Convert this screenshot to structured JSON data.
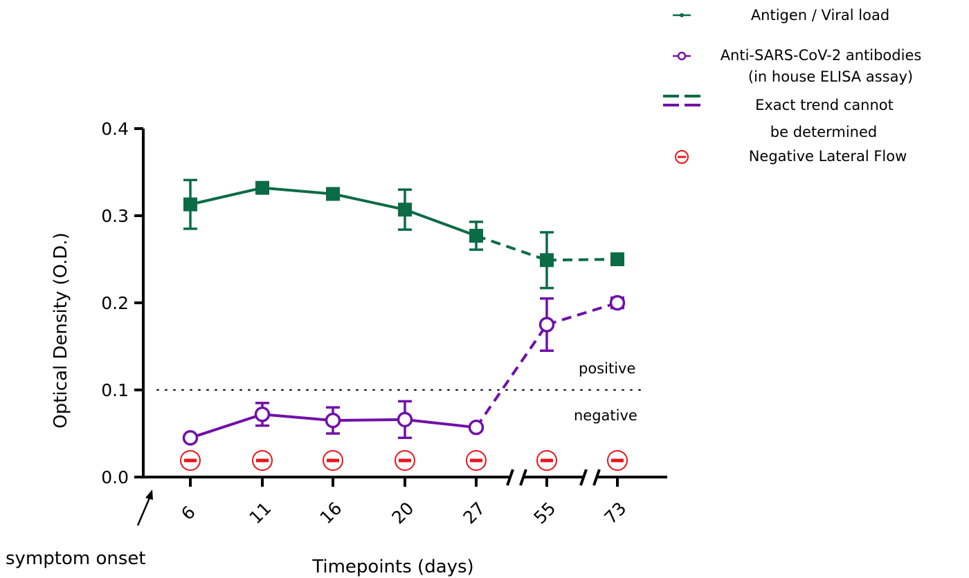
{
  "chart_data": {
    "type": "line",
    "x_categories": [
      "6",
      "11",
      "16",
      "20",
      "27",
      "55",
      "73"
    ],
    "xlabel": "Timepoints (days)",
    "ylabel": "Optical Density (O.D.)",
    "ylim": [
      0,
      0.4
    ],
    "yticks": [
      "0.0",
      "0.1",
      "0.2",
      "0.3",
      "0.4"
    ],
    "ytick_values": [
      0,
      0.1,
      0.2,
      0.3,
      0.4
    ],
    "axis_breaks": [
      "27-55",
      "55-73"
    ],
    "threshold": {
      "value": 0.1,
      "above_label": "positive",
      "below_label": "negative"
    },
    "onset_label": "symptom onset",
    "series": [
      {
        "name": "Antigen / Viral load",
        "color": "#0b6b45",
        "marker": "filled-square",
        "values": [
          0.313,
          0.332,
          0.325,
          0.307,
          0.277,
          0.249,
          0.25
        ],
        "errors": [
          0.028,
          0.006,
          0.004,
          0.023,
          0.016,
          0.032,
          0.004
        ]
      },
      {
        "name": "Anti-SARS-CoV-2 antibodies",
        "color": "#7010a8",
        "marker": "open-circle",
        "values": [
          0.045,
          0.072,
          0.065,
          0.066,
          0.057,
          0.175,
          0.2
        ],
        "errors": [
          0.0,
          0.013,
          0.015,
          0.021,
          0.0,
          0.03,
          0.006
        ]
      }
    ],
    "dashed_segments_from_category": "27",
    "negative_lateral_flow_at": [
      "6",
      "11",
      "16",
      "20",
      "27",
      "55",
      "73"
    ],
    "legend": {
      "placement": "top-right",
      "antigen": "Antigen / Viral load",
      "antibody_line1": "Anti-SARS-CoV-2 antibodies",
      "antibody_line2": "(in house ELISA assay)",
      "dashed_line1": "Exact trend cannot",
      "dashed_line2": "be determined",
      "negative": "Negative Lateral Flow"
    },
    "colors": {
      "antigen": "#0b6b45",
      "antibody": "#7010a8",
      "negative": "#e8141c"
    },
    "grid": false
  }
}
